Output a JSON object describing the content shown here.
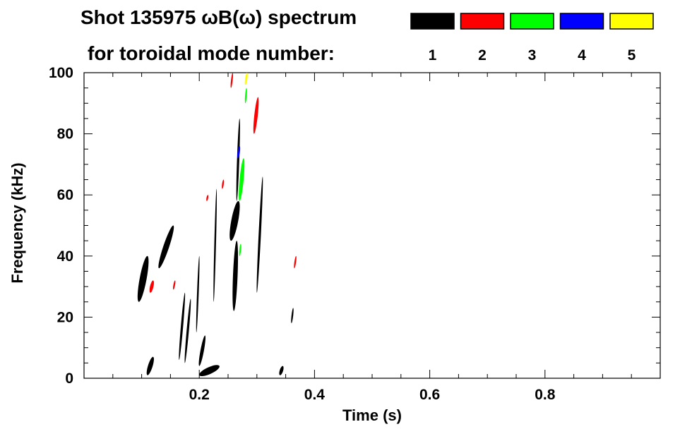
{
  "chart_data": {
    "type": "heatmap",
    "title_line1": "Shot 135975 ωB(ω) spectrum",
    "title_line2": "for toroidal mode number:",
    "xlabel": "Time (s)",
    "ylabel": "Frequency (kHz)",
    "xlim": [
      0.0,
      1.0
    ],
    "ylim": [
      0,
      100
    ],
    "x_ticks": [
      "0.2",
      "0.4",
      "0.6",
      "0.8"
    ],
    "x_tick_values": [
      0.2,
      0.4,
      0.6,
      0.8
    ],
    "y_ticks": [
      "0",
      "20",
      "40",
      "60",
      "80",
      "100"
    ],
    "y_tick_values": [
      0,
      20,
      40,
      60,
      80,
      100
    ],
    "grid": false,
    "legend_position": "top-right",
    "legend": [
      {
        "label": "1",
        "color": "#000000"
      },
      {
        "label": "2",
        "color": "#ff0000"
      },
      {
        "label": "3",
        "color": "#00ff00"
      },
      {
        "label": "4",
        "color": "#0000ff"
      },
      {
        "label": "5",
        "color": "#ffff00"
      }
    ],
    "features": [
      {
        "mode": 1,
        "t": [
          0.095,
          0.11
        ],
        "f": [
          25,
          40
        ],
        "w": 0.012
      },
      {
        "mode": 1,
        "t": [
          0.13,
          0.155
        ],
        "f": [
          36,
          50
        ],
        "w": 0.01
      },
      {
        "mode": 1,
        "t": [
          0.11,
          0.12
        ],
        "f": [
          1,
          7
        ],
        "w": 0.008
      },
      {
        "mode": 1,
        "t": [
          0.2,
          0.235
        ],
        "f": [
          1,
          4
        ],
        "w": 0.012
      },
      {
        "mode": 1,
        "t": [
          0.2,
          0.21
        ],
        "f": [
          4,
          14
        ],
        "w": 0.006
      },
      {
        "mode": 1,
        "t": [
          0.165,
          0.175
        ],
        "f": [
          6,
          28
        ],
        "w": 0.004
      },
      {
        "mode": 1,
        "t": [
          0.175,
          0.185
        ],
        "f": [
          5,
          26
        ],
        "w": 0.004
      },
      {
        "mode": 1,
        "t": [
          0.255,
          0.268
        ],
        "f": [
          45,
          58
        ],
        "w": 0.012
      },
      {
        "mode": 1,
        "t": [
          0.26,
          0.265
        ],
        "f": [
          22,
          45
        ],
        "w": 0.008
      },
      {
        "mode": 1,
        "t": [
          0.265,
          0.27
        ],
        "f": [
          58,
          85
        ],
        "w": 0.004
      },
      {
        "mode": 1,
        "t": [
          0.3,
          0.31
        ],
        "f": [
          28,
          66
        ],
        "w": 0.004
      },
      {
        "mode": 1,
        "t": [
          0.34,
          0.345
        ],
        "f": [
          1,
          4
        ],
        "w": 0.006
      },
      {
        "mode": 1,
        "t": [
          0.36,
          0.363
        ],
        "f": [
          18,
          23
        ],
        "w": 0.003
      },
      {
        "mode": 1,
        "t": [
          0.195,
          0.2
        ],
        "f": [
          15,
          40
        ],
        "w": 0.003
      },
      {
        "mode": 1,
        "t": [
          0.225,
          0.23
        ],
        "f": [
          25,
          62
        ],
        "w": 0.003
      },
      {
        "mode": 2,
        "t": [
          0.115,
          0.12
        ],
        "f": [
          28,
          32
        ],
        "w": 0.006
      },
      {
        "mode": 2,
        "t": [
          0.295,
          0.302
        ],
        "f": [
          80,
          92
        ],
        "w": 0.006
      },
      {
        "mode": 2,
        "t": [
          0.24,
          0.242
        ],
        "f": [
          62,
          65
        ],
        "w": 0.003
      },
      {
        "mode": 2,
        "t": [
          0.213,
          0.215
        ],
        "f": [
          58,
          60
        ],
        "w": 0.003
      },
      {
        "mode": 2,
        "t": [
          0.255,
          0.258
        ],
        "f": [
          95,
          100
        ],
        "w": 0.003
      },
      {
        "mode": 2,
        "t": [
          0.365,
          0.368
        ],
        "f": [
          36,
          40
        ],
        "w": 0.003
      },
      {
        "mode": 2,
        "t": [
          0.155,
          0.158
        ],
        "f": [
          29,
          32
        ],
        "w": 0.003
      },
      {
        "mode": 3,
        "t": [
          0.27,
          0.277
        ],
        "f": [
          58,
          72
        ],
        "w": 0.007
      },
      {
        "mode": 3,
        "t": [
          0.28,
          0.282
        ],
        "f": [
          90,
          95
        ],
        "w": 0.003
      },
      {
        "mode": 3,
        "t": [
          0.27,
          0.272
        ],
        "f": [
          40,
          44
        ],
        "w": 0.003
      },
      {
        "mode": 4,
        "t": [
          0.267,
          0.27
        ],
        "f": [
          72,
          76
        ],
        "w": 0.004
      },
      {
        "mode": 5,
        "t": [
          0.28,
          0.283
        ],
        "f": [
          96,
          100
        ],
        "w": 0.004
      }
    ]
  }
}
